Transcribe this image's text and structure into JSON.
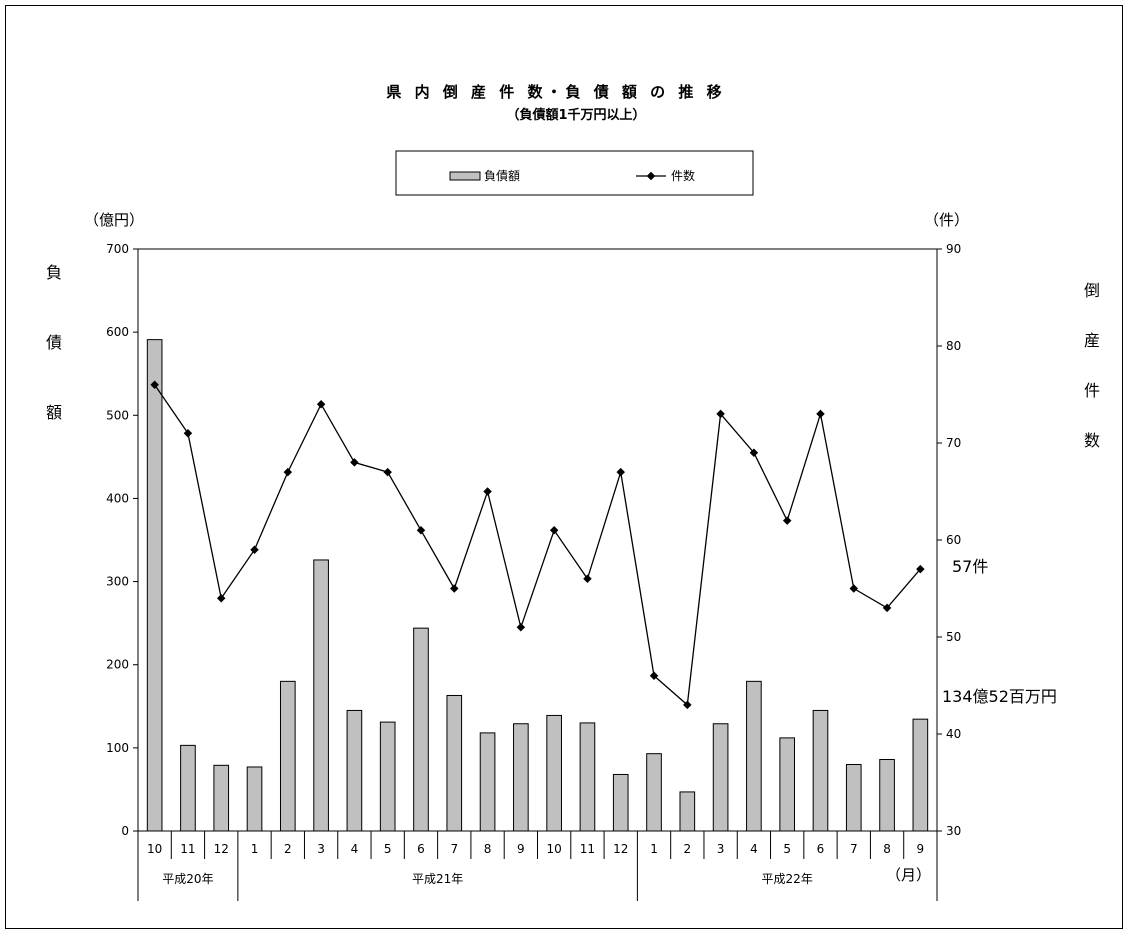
{
  "chart_data": {
    "type": "bar",
    "title": "県 内 倒 産 件 数・負 債 額 の 推 移",
    "subtitle": "（負債額1千万円以上）",
    "categories": [
      "10",
      "11",
      "12",
      "1",
      "2",
      "3",
      "4",
      "5",
      "6",
      "7",
      "8",
      "9",
      "10",
      "11",
      "12",
      "1",
      "2",
      "3",
      "4",
      "5",
      "6",
      "7",
      "8",
      "9"
    ],
    "year_groups": [
      {
        "label": "平成20年",
        "count": 3
      },
      {
        "label": "平成21年",
        "count": 12
      },
      {
        "label": "平成22年",
        "count": 9
      }
    ],
    "month_unit": "（月）",
    "series": [
      {
        "name": "負債額",
        "kind": "bar",
        "axis": "left",
        "color": "#c0c0c0",
        "values": [
          591,
          103,
          79,
          77,
          180,
          326,
          145,
          131,
          244,
          163,
          118,
          129,
          139,
          130,
          68,
          93,
          47,
          129,
          180,
          112,
          145,
          80,
          86,
          134.52
        ]
      },
      {
        "name": "件数",
        "kind": "line",
        "axis": "right",
        "color": "#000000",
        "values": [
          76,
          71,
          54,
          59,
          67,
          74,
          68,
          67,
          61,
          55,
          65,
          51,
          61,
          56,
          67,
          46,
          43,
          73,
          69,
          62,
          73,
          55,
          53,
          57
        ]
      }
    ],
    "left_axis": {
      "unit": "（億円）",
      "label": [
        "負",
        "債",
        "額"
      ],
      "ylim": [
        0,
        700
      ],
      "ticks": [
        0,
        100,
        200,
        300,
        400,
        500,
        600,
        700
      ]
    },
    "right_axis": {
      "unit": "（件）",
      "label": [
        "倒",
        "産",
        "件",
        "数"
      ],
      "ylim": [
        30,
        90
      ],
      "ticks": [
        30,
        40,
        50,
        60,
        70,
        80,
        90
      ]
    },
    "annotations": {
      "count_latest": "57件",
      "debt_latest": "134億52百万円"
    },
    "legend_position": "top-center",
    "grid": false
  }
}
